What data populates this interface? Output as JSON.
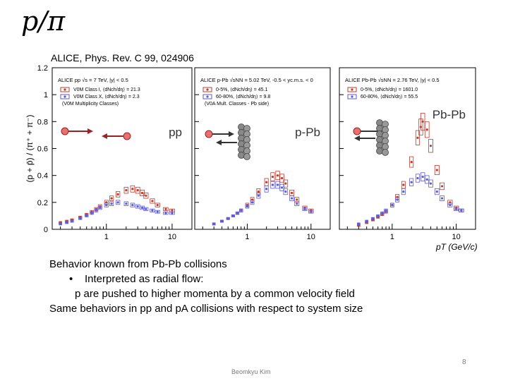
{
  "slide": {
    "title": "p/π",
    "citation": "ALICE, Phys. Rev. C 99, 024906",
    "body_lines": [
      "Behavior known from Pb-Pb collisions",
      "Interpreted as radial flow:",
      "p are pushed to higher momenta by a common velocity field",
      "Same behaviors in pp and pA collisions with respect to system size"
    ],
    "bullet": "•",
    "footer": "Beomkyu Kim",
    "page_number": "8"
  },
  "colors": {
    "class_high": "#c0392b",
    "class_low": "#5b5bd6",
    "axes": "#000000"
  },
  "chart_data": {
    "type": "scatter",
    "ylabel": "(p + p̄) / (π⁺ + π⁻)",
    "xlabel": "pT (GeV/c)",
    "y_axis": {
      "range": [
        0,
        1.2
      ],
      "ticks": [
        "0",
        "0.2",
        "0.4",
        "0.6",
        "0.8",
        "1",
        "1.2"
      ]
    },
    "x_axis": {
      "scale": "log",
      "range": [
        0.15,
        20
      ],
      "tick_labels": [
        "1",
        "10"
      ]
    },
    "panels": [
      {
        "system": "pp",
        "header": "ALICE pp √s = 7 TeV, |y| < 0.5",
        "legend": [
          "V0M Class I, ⟨dNch/dη⟩ = 21.3",
          "V0M Class X, ⟨dNch/dη⟩ = 2.3",
          "(V0M Multiplicity Classes)"
        ],
        "series": [
          {
            "legend_index": 0,
            "x": [
              0.2,
              0.25,
              0.3,
              0.4,
              0.5,
              0.6,
              0.7,
              0.8,
              1.0,
              1.2,
              1.5,
              2.0,
              2.5,
              3.0,
              3.5,
              4.0,
              5.0,
              6.0,
              8.0,
              10.0
            ],
            "y": [
              0.05,
              0.06,
              0.07,
              0.09,
              0.11,
              0.13,
              0.15,
              0.17,
              0.2,
              0.23,
              0.26,
              0.29,
              0.3,
              0.29,
              0.27,
              0.25,
              0.21,
              0.18,
              0.15,
              0.14
            ]
          },
          {
            "legend_index": 1,
            "x": [
              0.2,
              0.25,
              0.3,
              0.4,
              0.5,
              0.6,
              0.7,
              0.8,
              1.0,
              1.2,
              1.5,
              2.0,
              2.5,
              3.0,
              3.5,
              4.0,
              5.0,
              6.0,
              8.0,
              10.0
            ],
            "y": [
              0.04,
              0.05,
              0.06,
              0.08,
              0.1,
              0.12,
              0.14,
              0.16,
              0.18,
              0.19,
              0.2,
              0.19,
              0.18,
              0.17,
              0.16,
              0.15,
              0.14,
              0.13,
              0.12,
              0.12
            ]
          }
        ]
      },
      {
        "system": "p-Pb",
        "header": "ALICE p-Pb √sNN = 5.02 TeV, -0.5 < yc.m.s. < 0",
        "legend": [
          "0-5%, ⟨dNch/dη⟩ = 45.1",
          "60-80%, ⟨dNch/dη⟩ = 9.8",
          "(V0A Mult. Classes - Pb side)"
        ],
        "series": [
          {
            "legend_index": 0,
            "x": [
              0.3,
              0.4,
              0.5,
              0.6,
              0.7,
              0.8,
              1.0,
              1.2,
              1.5,
              2.0,
              2.5,
              3.0,
              3.5,
              4.0,
              5.0,
              6.0,
              8.0,
              10.0
            ],
            "y": [
              0.04,
              0.06,
              0.08,
              0.1,
              0.12,
              0.14,
              0.18,
              0.22,
              0.28,
              0.35,
              0.39,
              0.4,
              0.38,
              0.34,
              0.27,
              0.22,
              0.16,
              0.14
            ]
          },
          {
            "legend_index": 1,
            "x": [
              0.3,
              0.4,
              0.5,
              0.6,
              0.7,
              0.8,
              1.0,
              1.2,
              1.5,
              2.0,
              2.5,
              3.0,
              3.5,
              4.0,
              5.0,
              6.0,
              8.0,
              10.0
            ],
            "y": [
              0.04,
              0.06,
              0.08,
              0.1,
              0.12,
              0.14,
              0.17,
              0.2,
              0.25,
              0.3,
              0.33,
              0.33,
              0.31,
              0.28,
              0.23,
              0.19,
              0.15,
              0.13
            ]
          }
        ]
      },
      {
        "system": "Pb-Pb",
        "header": "ALICE Pb-Pb √sNN = 2.76 TeV, |y| < 0.5",
        "legend": [
          "0-5%, ⟨dNch/dη⟩ = 1601.0",
          "60-80%, ⟨dNch/dη⟩ = 55.5"
        ],
        "series": [
          {
            "legend_index": 0,
            "x": [
              0.3,
              0.4,
              0.5,
              0.6,
              0.7,
              0.8,
              1.0,
              1.2,
              1.5,
              2.0,
              2.5,
              2.8,
              3.0,
              3.5,
              4.0,
              5.0,
              6.0,
              8.0,
              10.0,
              12.0
            ],
            "y": [
              0.03,
              0.05,
              0.07,
              0.09,
              0.11,
              0.13,
              0.18,
              0.24,
              0.33,
              0.5,
              0.68,
              0.76,
              0.8,
              0.74,
              0.62,
              0.44,
              0.32,
              0.2,
              0.16,
              0.14
            ]
          },
          {
            "legend_index": 1,
            "x": [
              0.3,
              0.4,
              0.5,
              0.6,
              0.7,
              0.8,
              1.0,
              1.2,
              1.5,
              2.0,
              2.5,
              3.0,
              3.5,
              4.0,
              5.0,
              6.0,
              8.0,
              10.0,
              12.0
            ],
            "y": [
              0.04,
              0.06,
              0.08,
              0.1,
              0.12,
              0.14,
              0.18,
              0.22,
              0.28,
              0.35,
              0.38,
              0.39,
              0.37,
              0.34,
              0.28,
              0.23,
              0.18,
              0.15,
              0.14
            ]
          }
        ]
      }
    ]
  }
}
